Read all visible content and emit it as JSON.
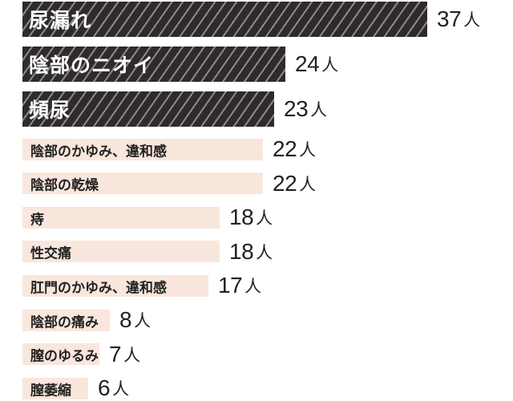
{
  "chart_data": {
    "type": "bar",
    "orientation": "horizontal",
    "categories": [
      "尿漏れ",
      "陰部のニオイ",
      "頻尿",
      "陰部のかゆみ、違和感",
      "陰部の乾燥",
      "痔",
      "性交痛",
      "肛門のかゆみ、違和感",
      "陰部の痛み",
      "膣のゆるみ",
      "膣萎縮"
    ],
    "values": [
      37,
      24,
      23,
      22,
      22,
      18,
      18,
      17,
      8,
      7,
      6
    ],
    "unit": "人",
    "highlight_top_n": 3,
    "grid": false,
    "legend": "none"
  },
  "colors": {
    "highlight_bar": "#2f2b2b",
    "other_bar": "#f9e6dc",
    "highlight_text": "#ffffff",
    "text": "#222222"
  }
}
